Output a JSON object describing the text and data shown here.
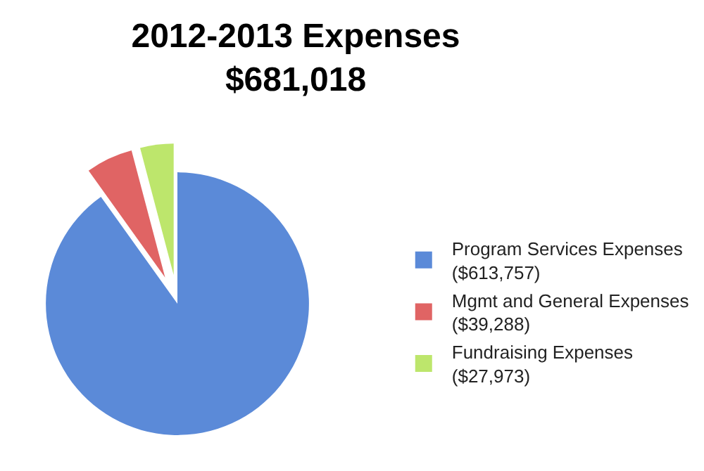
{
  "chart_data": {
    "type": "pie",
    "title": "2012-2013 Expenses",
    "subtitle": "$681,018",
    "categories": [
      "Program Services Expenses ($613,757)",
      "Mgmt and General Expenses ($39,288)",
      "Fundraising Expenses ($27,973)"
    ],
    "values": [
      613757,
      39288,
      27973
    ],
    "colors": [
      "#5b8ad8",
      "#e06464",
      "#bde66c"
    ],
    "legend": "right"
  }
}
